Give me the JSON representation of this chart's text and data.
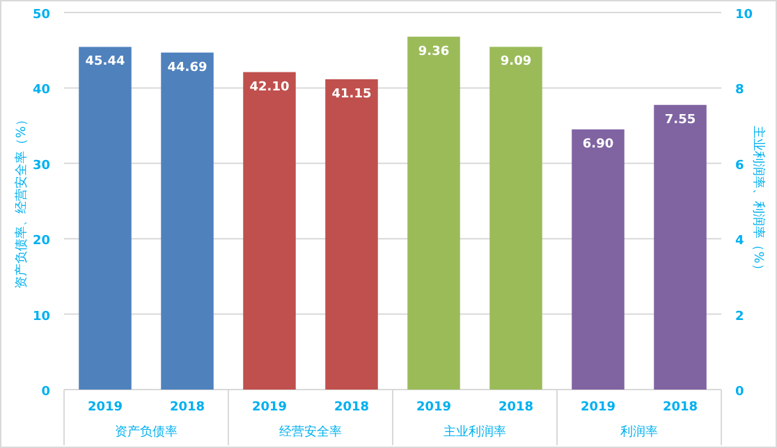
{
  "chart_data": {
    "type": "bar",
    "ylabel": "资产负债率、经营安全率（%）",
    "y2label": "主业利润率、利润率（%）",
    "categories": [
      "2019",
      "2018",
      "2019",
      "2018",
      "2019",
      "2018",
      "2019",
      "2018"
    ],
    "series": [
      {
        "name": "资产负债率",
        "color": "#4f81bd",
        "values": [
          45.44,
          44.69,
          null,
          null,
          null,
          null,
          null,
          null
        ],
        "value_labels": [
          "45.44",
          "44.69",
          null,
          null,
          null,
          null,
          null,
          null
        ]
      },
      {
        "name": "经营安全率",
        "color": "#c0504d",
        "values": [
          null,
          null,
          42.1,
          41.15,
          null,
          null,
          null,
          null
        ],
        "value_labels": [
          null,
          null,
          "42.10",
          "41.15",
          null,
          null,
          null,
          null
        ]
      },
      {
        "name": "主业利润率",
        "color": "#9bbb59",
        "axis": "y2",
        "values": [
          null,
          null,
          null,
          null,
          9.36,
          9.09,
          null,
          null
        ],
        "value_labels": [
          null,
          null,
          null,
          null,
          "9.36",
          "9.09",
          null,
          null
        ]
      },
      {
        "name": "利润率",
        "color": "#8064a2",
        "axis": "y2",
        "values": [
          null,
          null,
          null,
          null,
          null,
          null,
          6.9,
          7.55
        ],
        "value_labels": [
          null,
          null,
          null,
          null,
          null,
          null,
          "6.90",
          "7.55"
        ]
      }
    ],
    "ylim": [
      0,
      50
    ],
    "yticks": [
      0,
      10,
      20,
      30,
      40,
      50
    ],
    "y2lim": [
      0,
      10
    ],
    "y2ticks": [
      0,
      2,
      4,
      6,
      8,
      10
    ],
    "grid": "y"
  }
}
